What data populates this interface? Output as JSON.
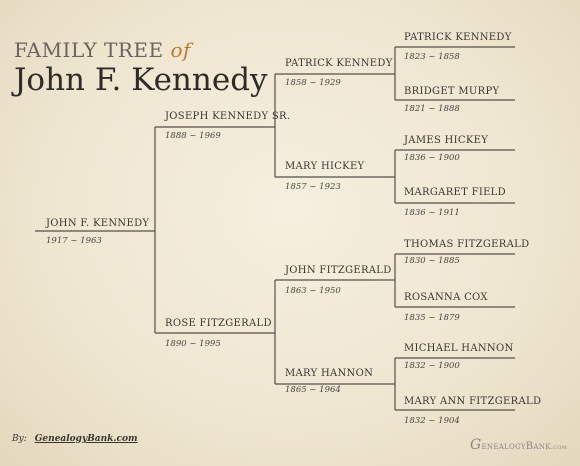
{
  "header": {
    "title_prefix": "FAMILY TREE",
    "title_of": "of",
    "title_main": "John F. Kennedy"
  },
  "tree": {
    "root": {
      "name": "JOHN F. KENNEDY",
      "dates": "1917 ~ 1963"
    },
    "father": {
      "name": "JOSEPH KENNEDY SR.",
      "dates": "1888 ~ 1969"
    },
    "mother": {
      "name": "ROSE FITZGERALD",
      "dates": "1890 ~ 1995"
    },
    "gp1": {
      "name": "PATRICK KENNEDY",
      "dates": "1858 ~ 1929"
    },
    "gp2": {
      "name": "MARY HICKEY",
      "dates": "1857 ~ 1923"
    },
    "gp3": {
      "name": "JOHN FITZGERALD",
      "dates": "1863 ~ 1950"
    },
    "gp4": {
      "name": "MARY HANNON",
      "dates": "1865 ~ 1964"
    },
    "ggp1": {
      "name": "PATRICK KENNEDY",
      "dates": "1823 ~ 1858"
    },
    "ggp2": {
      "name": "BRIDGET MURPY",
      "dates": "1821 ~ 1888"
    },
    "ggp3": {
      "name": "JAMES HICKEY",
      "dates": "1836 ~ 1900"
    },
    "ggp4": {
      "name": "MARGARET FIELD",
      "dates": "1836 ~ 1911"
    },
    "ggp5": {
      "name": "THOMAS FITZGERALD",
      "dates": "1830 ~ 1885"
    },
    "ggp6": {
      "name": "ROSANNA COX",
      "dates": "1835 ~ 1879"
    },
    "ggp7": {
      "name": "MICHAEL HANNON",
      "dates": "1832 ~ 1900"
    },
    "ggp8": {
      "name": "MARY ANN FITZGERALD",
      "dates": "1832 ~ 1904"
    }
  },
  "footer": {
    "by_label": "By:",
    "site": "GenealogyBank.com",
    "logo_initial": "G",
    "logo_text": "enealogyBank",
    "logo_suffix": ".com"
  },
  "colors": {
    "line": "#55504a",
    "title_accent": "#c07a2a"
  }
}
